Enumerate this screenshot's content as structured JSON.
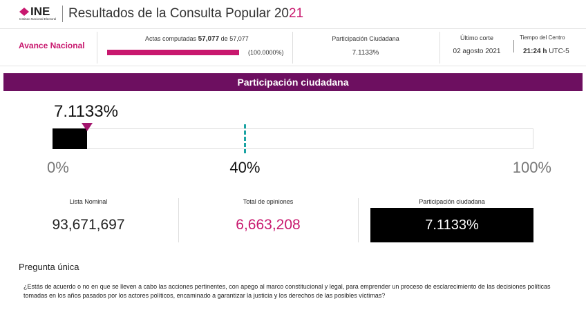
{
  "header": {
    "logo": "INE",
    "logo_sub": "Instituto Nacional Electoral",
    "title_main": "Resultados de la Consulta Popular 20",
    "title_accent": "21"
  },
  "summary": {
    "label": "Avance Nacional",
    "actas_label": "Actas computadas",
    "actas_done": {
      "value": 57077,
      "label": "57,077"
    },
    "actas_of": "de",
    "actas_total": {
      "value": 57077,
      "label": "57,077"
    },
    "actas_pct": "(100.0000%)",
    "participation_label": "Participación Ciudadana",
    "participation_value": "7.1133%",
    "cut_label": "Último corte",
    "cut_date": "02 agosto 2021",
    "time_label": "Tiempo del Centro",
    "time_value": "21:24 h",
    "time_zone": "UTC-5"
  },
  "participation": {
    "title": "Participación ciudadana",
    "value": 7.1133,
    "value_label": "7.1133%",
    "threshold": 40,
    "min": 0,
    "max": 100,
    "ticks": [
      {
        "value": 0,
        "label": "0%"
      },
      {
        "value": 40,
        "label": "40%"
      },
      {
        "value": 100,
        "label": "100%"
      }
    ]
  },
  "stats": [
    {
      "label": "Lista Nominal",
      "value": "93,671,697"
    },
    {
      "label": "Total de opiniones",
      "value": "6,663,208"
    },
    {
      "label": "Participación ciudadana",
      "value": "7.1133%"
    }
  ],
  "question": {
    "title": "Pregunta única",
    "text": "¿Estás de acuerdo o no en que se lleven a cabo las acciones pertinentes, con apego al marco constitucional y legal, para emprender un proceso de esclarecimiento de las decisiones políticas tomadas en los años pasados por los actores políticos, encaminado a garantizar la justicia y los derechos de las posibles víctimas?"
  }
}
